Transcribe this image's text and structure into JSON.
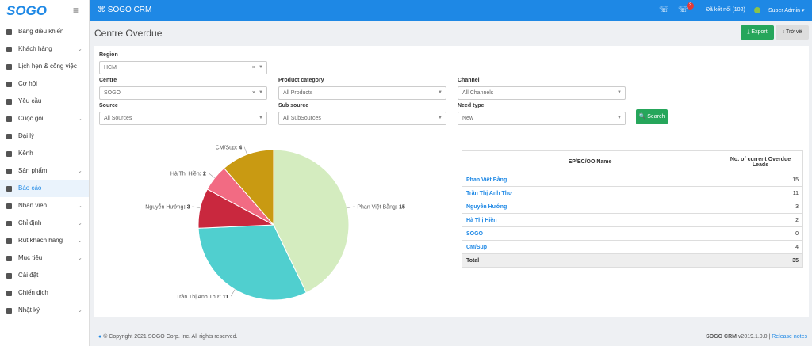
{
  "sidebar": {
    "logo": "SOGO",
    "items": [
      {
        "label": "Bảng điều khiển",
        "submenu": false
      },
      {
        "label": "Khách hàng",
        "submenu": true
      },
      {
        "label": "Lịch hẹn & công việc",
        "submenu": false
      },
      {
        "label": "Cơ hội",
        "submenu": false
      },
      {
        "label": "Yêu cầu",
        "submenu": false
      },
      {
        "label": "Cuộc gọi",
        "submenu": true
      },
      {
        "label": "Đại lý",
        "submenu": false
      },
      {
        "label": "Kênh",
        "submenu": false
      },
      {
        "label": "Sản phẩm",
        "submenu": true
      },
      {
        "label": "Báo cáo",
        "submenu": false,
        "active": true
      },
      {
        "label": "Nhân viên",
        "submenu": true
      },
      {
        "label": "Chỉ định",
        "submenu": true
      },
      {
        "label": "Rút khách hàng",
        "submenu": true
      },
      {
        "label": "Mục tiêu",
        "submenu": true
      },
      {
        "label": "Cài đặt",
        "submenu": false
      },
      {
        "label": "Chiến dịch",
        "submenu": false
      },
      {
        "label": "Nhật ký",
        "submenu": true
      }
    ]
  },
  "topbar": {
    "title": "SOGO CRM",
    "badge": "3",
    "status": "Đã kết nối (102)",
    "user": "Super Admin"
  },
  "page": {
    "title": "Centre Overdue",
    "export": "Export",
    "back": "Trở về"
  },
  "filters": [
    {
      "label": "Region",
      "value": "HCM",
      "clear": true
    },
    {
      "label": "Centre",
      "value": "SOGO",
      "clear": true
    },
    {
      "label": "Product category",
      "value": "All Products"
    },
    {
      "label": "Channel",
      "value": "All Channels"
    },
    {
      "label": "Source",
      "value": "All Sources"
    },
    {
      "label": "Sub source",
      "value": "All SubSources"
    },
    {
      "label": "Need type",
      "value": "New"
    }
  ],
  "search": "Search",
  "chart_data": {
    "type": "pie",
    "categories": [
      "Phan Việt Bằng",
      "Trần Thị Anh Thư",
      "Nguyễn Hướng",
      "Hà Thị Hiền",
      "CM/Sup"
    ],
    "values": [
      15,
      11,
      3,
      2,
      4
    ],
    "value_labels": [
      ": 15",
      ": 11",
      ": 3",
      ": 2",
      ": 4"
    ],
    "colors": [
      "#d4ecbf",
      "#50cfcf",
      "#c9283e",
      "#f26b83",
      "#c99a12"
    ]
  },
  "table": {
    "headers": [
      "EP/EC/OO Name",
      "No. of current Overdue Leads"
    ],
    "rows": [
      [
        "Phan Việt Bằng",
        "15"
      ],
      [
        "Trần Thị Anh Thư",
        "11"
      ],
      [
        "Nguyễn Hướng",
        "3"
      ],
      [
        "Hà Thị Hiền",
        "2"
      ],
      [
        "SOGO",
        "0"
      ],
      [
        "CM/Sup",
        "4"
      ]
    ],
    "total": [
      "Total",
      "35"
    ]
  },
  "footer": {
    "copyright": "© Copyright 2021 SOGO Corp. Inc. All rights reserved.",
    "brand": "SOGO CRM",
    "version": "v2019.1.0.0 |",
    "release": "Release notes"
  }
}
